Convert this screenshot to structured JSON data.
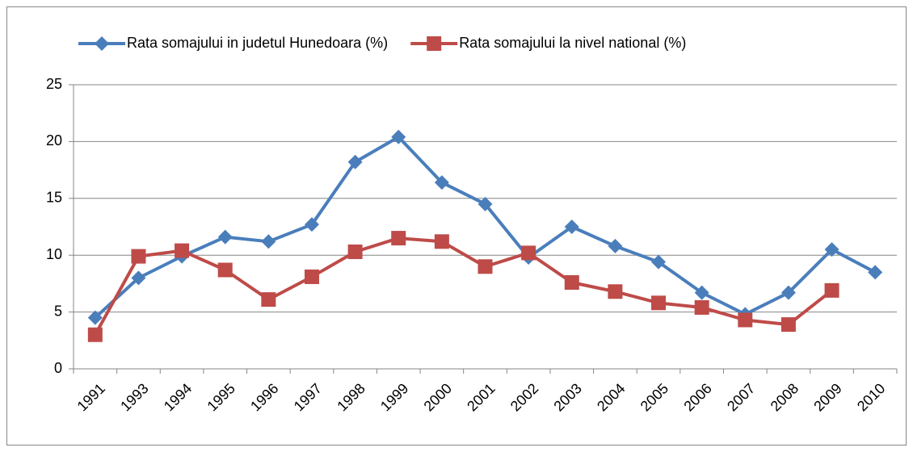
{
  "chart_data": {
    "type": "line",
    "categories": [
      "1991",
      "1993",
      "1994",
      "1995",
      "1996",
      "1997",
      "1998",
      "1999",
      "2000",
      "2001",
      "2002",
      "2003",
      "2004",
      "2005",
      "2006",
      "2007",
      "2008",
      "2009",
      "2010"
    ],
    "series": [
      {
        "name": "Rata somajului in judetul Hunedoara (%)",
        "color": "#4a7ebb",
        "marker": "diamond",
        "values": [
          4.5,
          8.0,
          9.9,
          11.6,
          11.2,
          12.7,
          18.2,
          20.4,
          16.4,
          14.5,
          9.8,
          12.5,
          10.8,
          9.4,
          6.7,
          4.8,
          6.7,
          10.5,
          8.5
        ]
      },
      {
        "name": "Rata somajului la nivel national (%)",
        "color": "#be4b48",
        "marker": "square",
        "values": [
          3.0,
          9.9,
          10.4,
          8.7,
          6.1,
          8.1,
          10.3,
          11.5,
          11.2,
          9.0,
          10.2,
          7.6,
          6.8,
          5.8,
          5.4,
          4.3,
          3.9,
          6.9,
          null
        ]
      }
    ],
    "ylim": [
      0,
      25
    ],
    "yticks": [
      0,
      5,
      10,
      15,
      20,
      25
    ],
    "grid": true,
    "legend": "top"
  }
}
